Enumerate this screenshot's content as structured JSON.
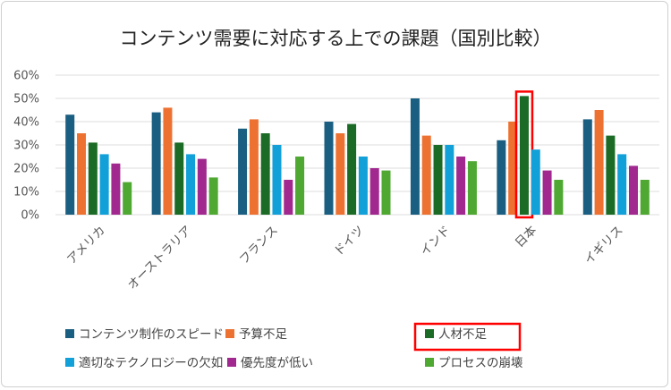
{
  "chart_data": {
    "type": "bar",
    "title": "コンテンツ需要に対応する上での課題（国別比較）",
    "xlabel": "",
    "ylabel": "",
    "ylim": [
      0,
      60
    ],
    "yticks": [
      "0%",
      "10%",
      "20%",
      "30%",
      "40%",
      "50%",
      "60%"
    ],
    "grid": true,
    "legend_position": "bottom",
    "categories": [
      "アメリカ",
      "オーストラリア",
      "フランス",
      "ドイツ",
      "インド",
      "日本",
      "イギリス"
    ],
    "series": [
      {
        "name": "コンテンツ制作のスピード",
        "color": "#1a5f82",
        "values": [
          43,
          44,
          37,
          40,
          50,
          32,
          41
        ]
      },
      {
        "name": "予算不足",
        "color": "#ed7232",
        "values": [
          35,
          46,
          41,
          35,
          34,
          40,
          45
        ]
      },
      {
        "name": "人材不足",
        "color": "#1b6b26",
        "values": [
          31,
          31,
          35,
          39,
          30,
          51,
          34
        ]
      },
      {
        "name": "適切なテクノロジーの欠如",
        "color": "#12a0d9",
        "values": [
          26,
          26,
          30,
          25,
          30,
          28,
          26
        ]
      },
      {
        "name": "優先度が低い",
        "color": "#a0288f",
        "values": [
          22,
          24,
          15,
          20,
          25,
          19,
          21
        ]
      },
      {
        "name": "プロセスの崩壊",
        "color": "#4fa832",
        "values": [
          14,
          16,
          25,
          19,
          23,
          15,
          15
        ]
      }
    ],
    "highlight": {
      "category": "日本",
      "series": "人材不足",
      "color": "#ff0000"
    }
  }
}
